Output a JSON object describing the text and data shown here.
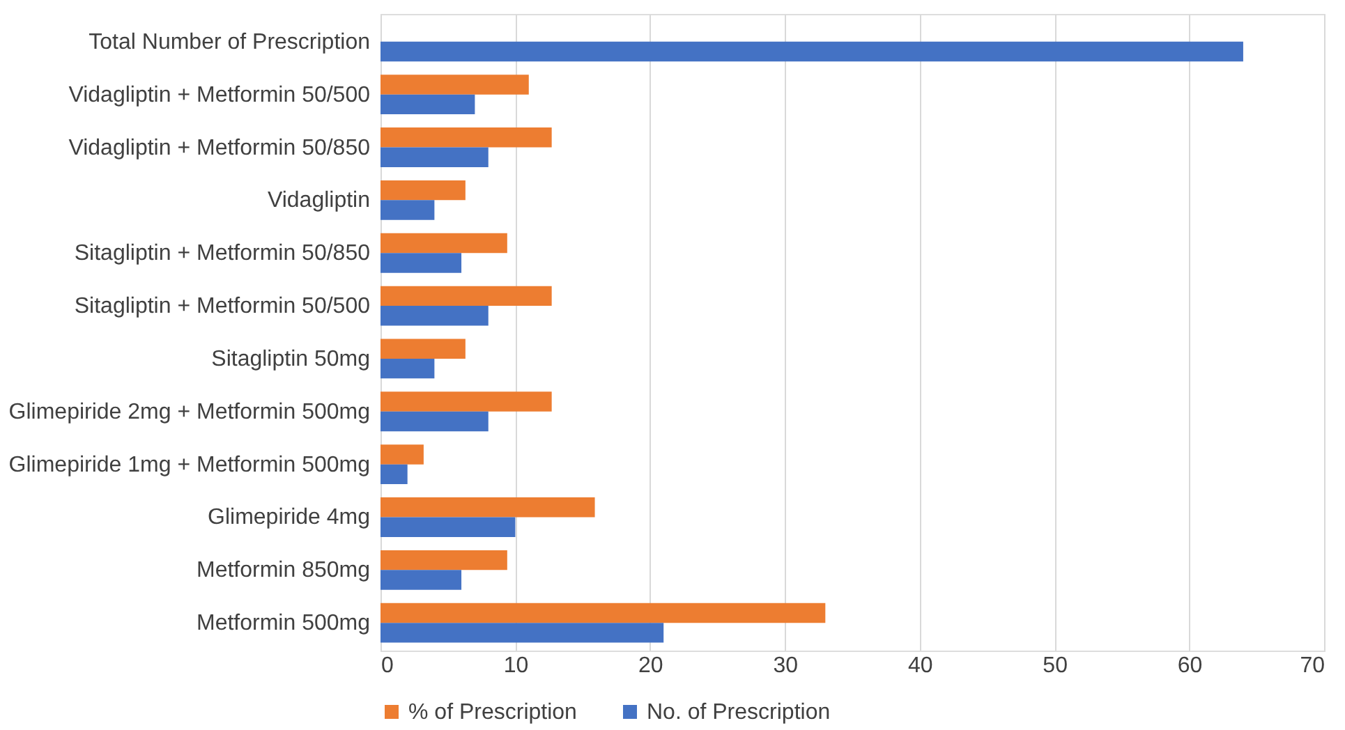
{
  "chart_data": {
    "type": "bar",
    "orientation": "horizontal",
    "categories": [
      "Total Number of Prescription",
      "Vidagliptin + Metformin 50/500",
      "Vidagliptin + Metformin 50/850",
      "Vidagliptin",
      "Sitagliptin + Metformin 50/850",
      "Sitagliptin + Metformin 50/500",
      "Sitagliptin 50mg",
      "Glimepiride 2mg + Metformin 500mg",
      "Glimepiride 1mg + Metformin 500mg",
      "Glimepiride 4mg",
      "Metformin 850mg",
      "Metformin 500mg"
    ],
    "series": [
      {
        "name": "% of Prescription",
        "color": "#ed7d31",
        "values": [
          null,
          11,
          12.7,
          6.3,
          9.4,
          12.7,
          6.3,
          12.7,
          3.2,
          15.9,
          9.4,
          33
        ]
      },
      {
        "name": "No. of Prescription",
        "color": "#4472c4",
        "values": [
          64,
          7,
          8,
          4,
          6,
          8,
          4,
          8,
          2,
          10,
          6,
          21
        ]
      }
    ],
    "xlim": [
      0,
      70
    ],
    "xticks": [
      0,
      10,
      20,
      30,
      40,
      50,
      60,
      70
    ],
    "grid": "x",
    "legend": "bottom"
  }
}
